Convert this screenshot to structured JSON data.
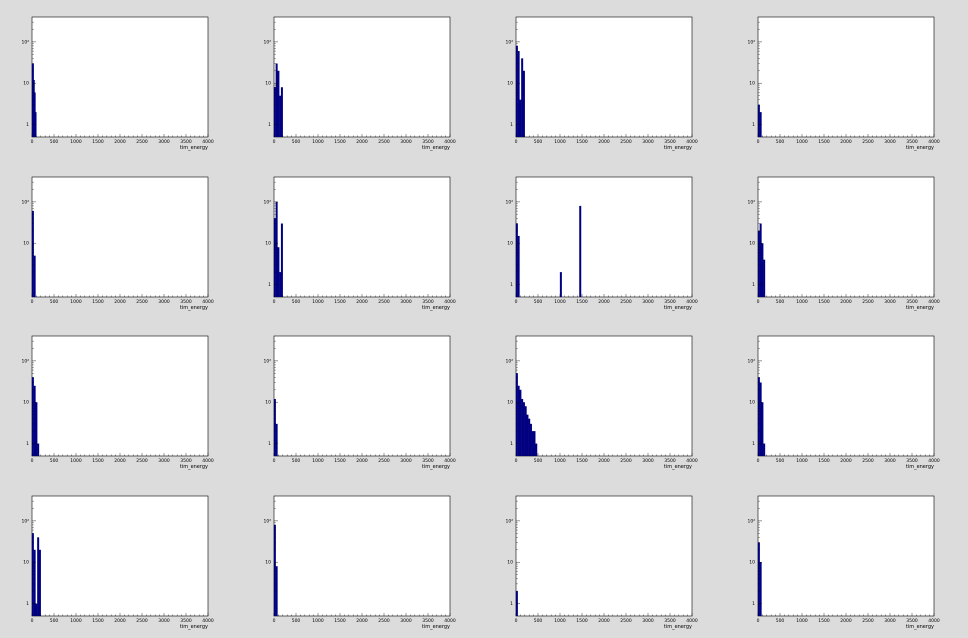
{
  "canvas": {
    "background": "#dcdcdc",
    "frame": "#ffffff",
    "histogram_color": "#000080",
    "axis_color": "#000000"
  },
  "chart_data": [
    {
      "type": "bar",
      "xlabel": "tim_energy",
      "ylog": true,
      "xlim": [
        0,
        4000
      ],
      "ylim": [
        0.5,
        400
      ],
      "x_ticks": [
        "0",
        "500",
        "1000",
        "1500",
        "2000",
        "2500",
        "3000",
        "3500",
        "4000"
      ],
      "y_ticks": [
        {
          "v": 1,
          "label": "1"
        },
        {
          "v": 10,
          "label": "10"
        },
        {
          "v": 100,
          "label": "10²"
        }
      ],
      "bins": [
        [
          20,
          30
        ],
        [
          40,
          12
        ],
        [
          60,
          6
        ],
        [
          80,
          2
        ]
      ]
    },
    {
      "type": "bar",
      "xlabel": "tim_energy",
      "ylog": true,
      "xlim": [
        0,
        4000
      ],
      "ylim": [
        0.5,
        400
      ],
      "x_ticks": [
        "0",
        "500",
        "1000",
        "1500",
        "2000",
        "2500",
        "3000",
        "3500",
        "4000"
      ],
      "y_ticks": [
        {
          "v": 1,
          "label": "1"
        },
        {
          "v": 10,
          "label": "10"
        },
        {
          "v": 100,
          "label": "10²"
        }
      ],
      "bins": [
        [
          20,
          8
        ],
        [
          60,
          30
        ],
        [
          100,
          20
        ],
        [
          140,
          5
        ],
        [
          180,
          8
        ]
      ]
    },
    {
      "type": "bar",
      "xlabel": "tim_energy",
      "ylog": true,
      "xlim": [
        0,
        4000
      ],
      "ylim": [
        0.5,
        400
      ],
      "x_ticks": [
        "0",
        "500",
        "1000",
        "1500",
        "2000",
        "2500",
        "3000",
        "3500",
        "4000"
      ],
      "y_ticks": [
        {
          "v": 1,
          "label": "1"
        },
        {
          "v": 10,
          "label": "10"
        },
        {
          "v": 100,
          "label": "10²"
        }
      ],
      "bins": [
        [
          20,
          80
        ],
        [
          60,
          60
        ],
        [
          100,
          4
        ],
        [
          140,
          40
        ],
        [
          180,
          20
        ]
      ]
    },
    {
      "type": "bar",
      "xlabel": "tim_energy",
      "ylog": true,
      "xlim": [
        0,
        4000
      ],
      "ylim": [
        0.5,
        400
      ],
      "x_ticks": [
        "0",
        "500",
        "1000",
        "1500",
        "2000",
        "2500",
        "3000",
        "3500",
        "4000"
      ],
      "y_ticks": [
        {
          "v": 1,
          "label": "1"
        },
        {
          "v": 10,
          "label": "10"
        },
        {
          "v": 100,
          "label": "10²"
        }
      ],
      "bins": [
        [
          20,
          3
        ],
        [
          60,
          2
        ]
      ]
    },
    {
      "type": "bar",
      "xlabel": "tim_energy",
      "ylog": true,
      "xlim": [
        0,
        4000
      ],
      "ylim": [
        0.5,
        400
      ],
      "x_ticks": [
        "0",
        "500",
        "1000",
        "1500",
        "2000",
        "2500",
        "3000",
        "3500",
        "4000"
      ],
      "y_ticks": [
        {
          "v": 10,
          "label": "10"
        },
        {
          "v": 100,
          "label": "10²"
        }
      ],
      "bins": [
        [
          20,
          60
        ],
        [
          60,
          5
        ]
      ]
    },
    {
      "type": "bar",
      "xlabel": "tim_energy",
      "ylog": true,
      "xlim": [
        0,
        4000
      ],
      "ylim": [
        0.5,
        400
      ],
      "x_ticks": [
        "0",
        "500",
        "1000",
        "1500",
        "2000",
        "2500",
        "3000",
        "3500",
        "4000"
      ],
      "y_ticks": [
        {
          "v": 1,
          "label": "1"
        },
        {
          "v": 10,
          "label": "10"
        },
        {
          "v": 100,
          "label": "10²"
        }
      ],
      "bins": [
        [
          20,
          40
        ],
        [
          60,
          100
        ],
        [
          100,
          8
        ],
        [
          140,
          2
        ],
        [
          180,
          30
        ]
      ]
    },
    {
      "type": "bar",
      "xlabel": "tim_energy",
      "ylog": true,
      "xlim": [
        0,
        4000
      ],
      "ylim": [
        0.5,
        400
      ],
      "x_ticks": [
        "0",
        "500",
        "1000",
        "1500",
        "2000",
        "2500",
        "3000",
        "3500",
        "4000"
      ],
      "y_ticks": [
        {
          "v": 1,
          "label": "1"
        },
        {
          "v": 10,
          "label": "10"
        },
        {
          "v": 100,
          "label": "10²"
        }
      ],
      "bins": [
        [
          20,
          30
        ],
        [
          60,
          15
        ],
        [
          1020,
          2
        ],
        [
          1460,
          80
        ]
      ]
    },
    {
      "type": "bar",
      "xlabel": "tim_energy",
      "ylog": true,
      "xlim": [
        0,
        4000
      ],
      "ylim": [
        0.5,
        400
      ],
      "x_ticks": [
        "0",
        "500",
        "1000",
        "1500",
        "2000",
        "2500",
        "3000",
        "3500",
        "4000"
      ],
      "y_ticks": [
        {
          "v": 1,
          "label": "1"
        },
        {
          "v": 10,
          "label": "10"
        },
        {
          "v": 100,
          "label": "10²"
        }
      ],
      "bins": [
        [
          20,
          20
        ],
        [
          60,
          30
        ],
        [
          100,
          10
        ],
        [
          140,
          4
        ]
      ]
    },
    {
      "type": "bar",
      "xlabel": "tim_energy",
      "ylog": true,
      "xlim": [
        0,
        4000
      ],
      "ylim": [
        0.5,
        400
      ],
      "x_ticks": [
        "0",
        "500",
        "1000",
        "1500",
        "2000",
        "2500",
        "3000",
        "3500",
        "4000"
      ],
      "y_ticks": [
        {
          "v": 1,
          "label": "1"
        },
        {
          "v": 10,
          "label": "10"
        },
        {
          "v": 100,
          "label": "10²"
        }
      ],
      "bins": [
        [
          20,
          40
        ],
        [
          60,
          25
        ],
        [
          100,
          10
        ],
        [
          140,
          1
        ]
      ]
    },
    {
      "type": "bar",
      "xlabel": "tim_energy",
      "ylog": true,
      "xlim": [
        0,
        4000
      ],
      "ylim": [
        0.5,
        400
      ],
      "x_ticks": [
        "0",
        "500",
        "1000",
        "1500",
        "2000",
        "2500",
        "3000",
        "3500",
        "4000"
      ],
      "y_ticks": [
        {
          "v": 1,
          "label": "1"
        },
        {
          "v": 10,
          "label": "10"
        },
        {
          "v": 100,
          "label": "10²"
        }
      ],
      "bins": [
        [
          20,
          12
        ],
        [
          60,
          3
        ]
      ]
    },
    {
      "type": "bar",
      "xlabel": "tim_energy",
      "ylog": true,
      "xlim": [
        0,
        4000
      ],
      "ylim": [
        0.5,
        400
      ],
      "x_ticks": [
        "0",
        "500",
        "1000",
        "1500",
        "2000",
        "2500",
        "3000",
        "3500",
        "4000"
      ],
      "y_ticks": [
        {
          "v": 1,
          "label": "1"
        },
        {
          "v": 10,
          "label": "10"
        },
        {
          "v": 100,
          "label": "10²"
        }
      ],
      "bins": [
        [
          20,
          50
        ],
        [
          60,
          25
        ],
        [
          100,
          20
        ],
        [
          140,
          12
        ],
        [
          180,
          10
        ],
        [
          220,
          8
        ],
        [
          260,
          5
        ],
        [
          300,
          4
        ],
        [
          340,
          3
        ],
        [
          380,
          2
        ],
        [
          420,
          2
        ],
        [
          460,
          1
        ]
      ]
    },
    {
      "type": "bar",
      "xlabel": "tim_energy",
      "ylog": true,
      "xlim": [
        0,
        4000
      ],
      "ylim": [
        0.5,
        400
      ],
      "x_ticks": [
        "0",
        "500",
        "1000",
        "1500",
        "2000",
        "2500",
        "3000",
        "3500",
        "4000"
      ],
      "y_ticks": [
        {
          "v": 1,
          "label": "1"
        },
        {
          "v": 10,
          "label": "10"
        },
        {
          "v": 100,
          "label": "10²"
        }
      ],
      "bins": [
        [
          20,
          40
        ],
        [
          60,
          30
        ],
        [
          100,
          10
        ],
        [
          140,
          1
        ]
      ]
    },
    {
      "type": "bar",
      "xlabel": "tim_energy",
      "ylog": true,
      "xlim": [
        0,
        4000
      ],
      "ylim": [
        0.5,
        400
      ],
      "x_ticks": [
        "0",
        "500",
        "1000",
        "1500",
        "2000",
        "2500",
        "3000",
        "3500",
        "4000"
      ],
      "y_ticks": [
        {
          "v": 1,
          "label": "1"
        },
        {
          "v": 10,
          "label": "10"
        },
        {
          "v": 100,
          "label": "10²"
        }
      ],
      "bins": [
        [
          20,
          50
        ],
        [
          60,
          20
        ],
        [
          100,
          1
        ],
        [
          140,
          40
        ],
        [
          180,
          20
        ]
      ]
    },
    {
      "type": "bar",
      "xlabel": "tim_energy",
      "ylog": true,
      "xlim": [
        0,
        4000
      ],
      "ylim": [
        0.5,
        400
      ],
      "x_ticks": [
        "0",
        "500",
        "1000",
        "1500",
        "2000",
        "2500",
        "3000",
        "3500",
        "4000"
      ],
      "y_ticks": [
        {
          "v": 10,
          "label": "10"
        },
        {
          "v": 100,
          "label": "10²"
        }
      ],
      "bins": [
        [
          20,
          80
        ],
        [
          60,
          8
        ]
      ]
    },
    {
      "type": "bar",
      "xlabel": "tim_energy",
      "ylog": true,
      "xlim": [
        0,
        4000
      ],
      "ylim": [
        0.5,
        400
      ],
      "x_ticks": [
        "0",
        "500",
        "1000",
        "1500",
        "2000",
        "2500",
        "3000",
        "3500",
        "4000"
      ],
      "y_ticks": [
        {
          "v": 1,
          "label": "1"
        },
        {
          "v": 10,
          "label": "10"
        },
        {
          "v": 100,
          "label": "10²"
        }
      ],
      "bins": [
        [
          20,
          2
        ]
      ]
    },
    {
      "type": "bar",
      "xlabel": "tim_energy",
      "ylog": true,
      "xlim": [
        0,
        4000
      ],
      "ylim": [
        0.5,
        400
      ],
      "x_ticks": [
        "0",
        "500",
        "1000",
        "1500",
        "2000",
        "2500",
        "3000",
        "3500",
        "4000"
      ],
      "y_ticks": [
        {
          "v": 1,
          "label": "1"
        },
        {
          "v": 10,
          "label": "10"
        },
        {
          "v": 100,
          "label": "10²"
        }
      ],
      "bins": [
        [
          20,
          30
        ],
        [
          60,
          10
        ]
      ]
    }
  ]
}
